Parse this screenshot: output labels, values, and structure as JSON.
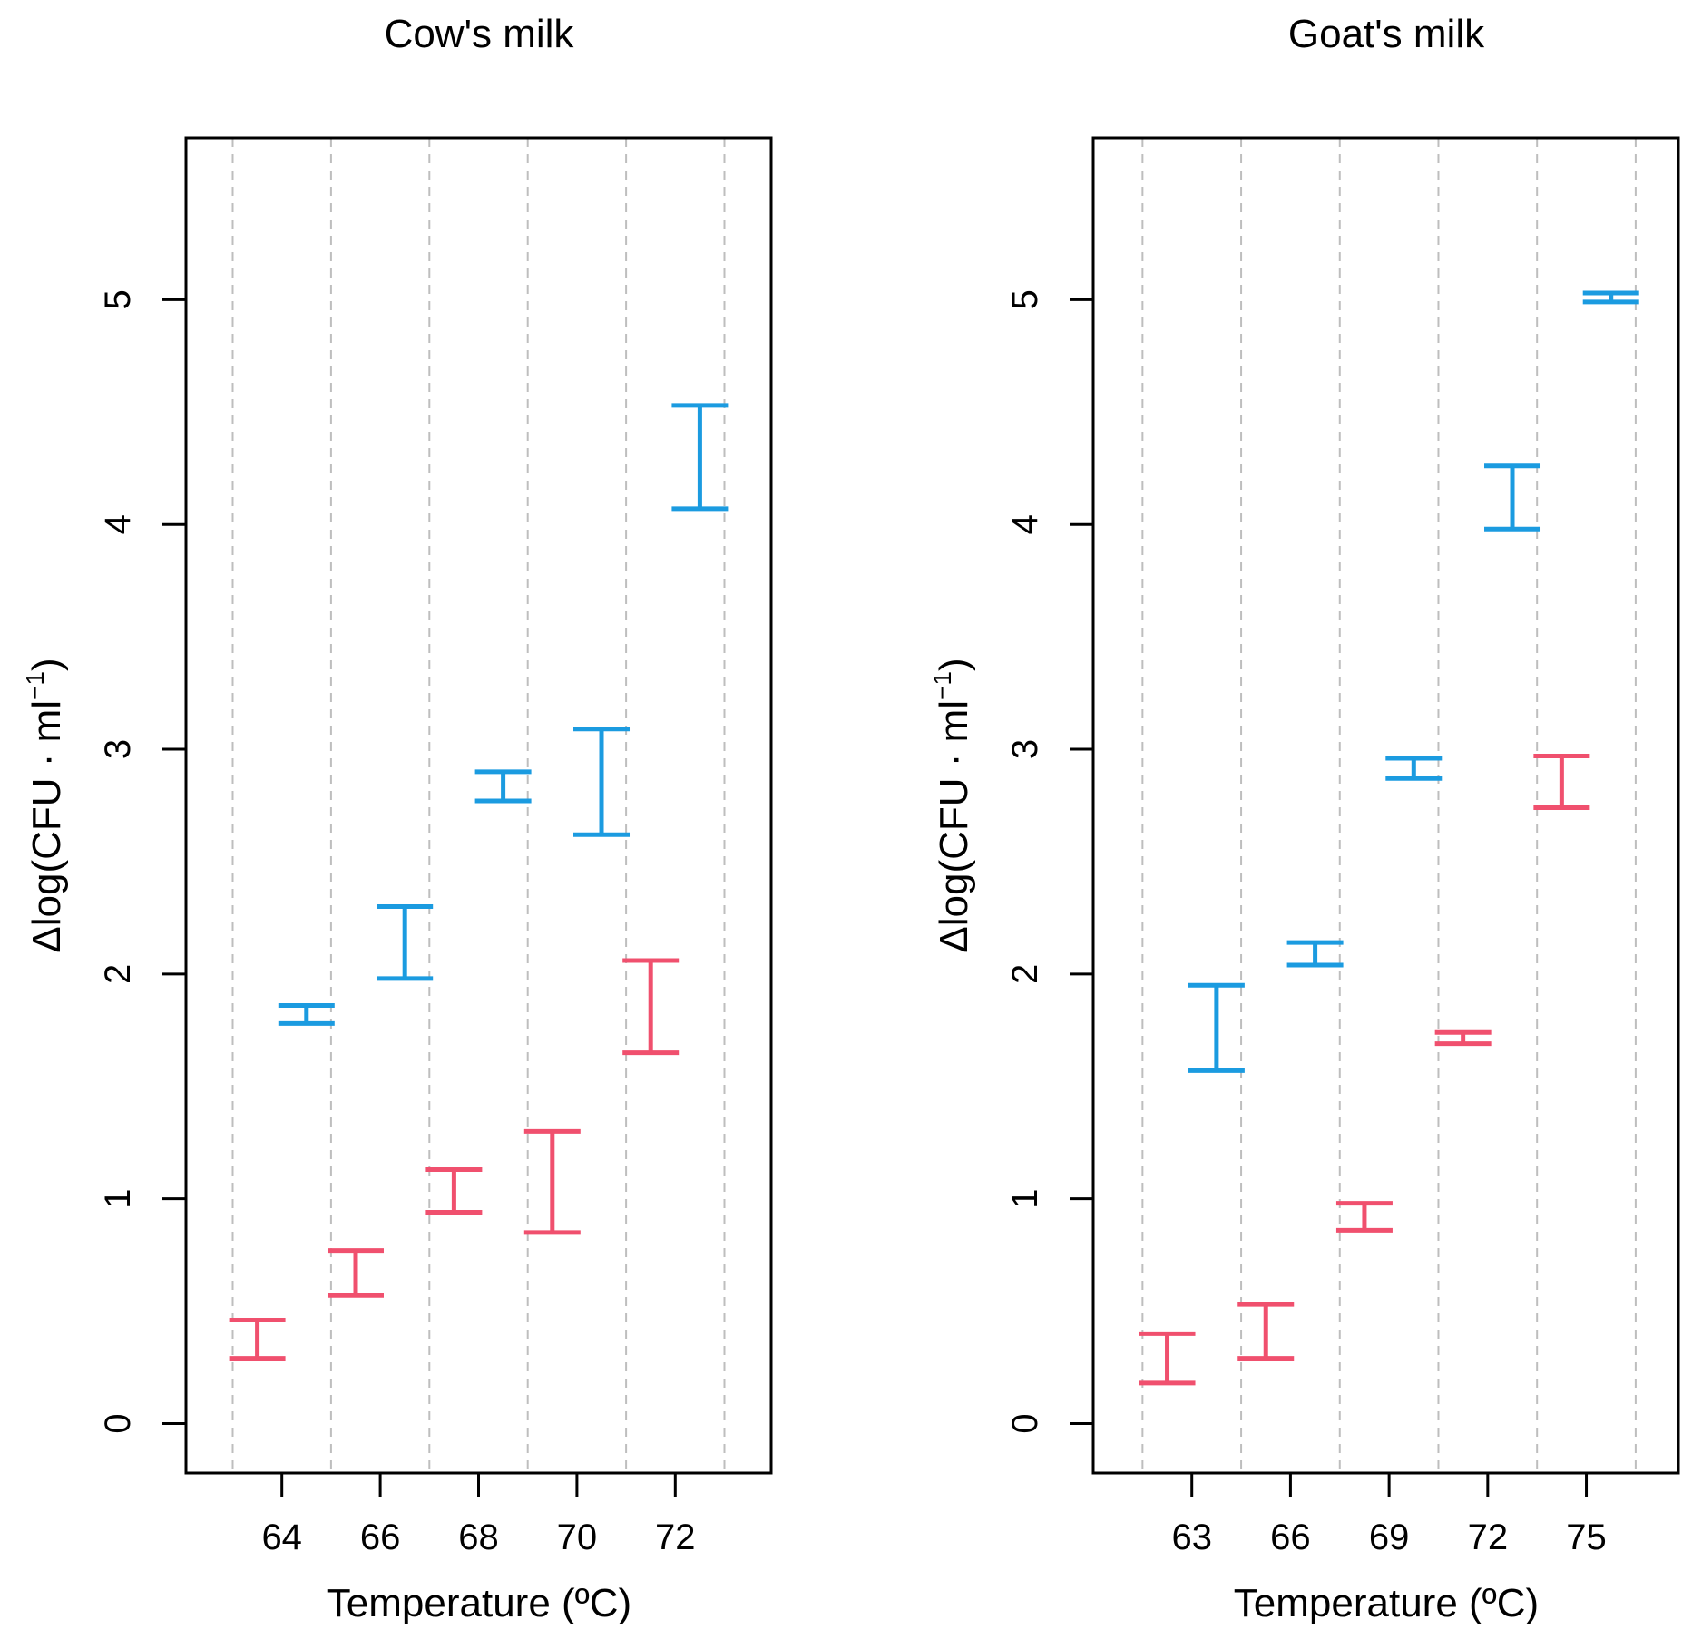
{
  "colors": {
    "low": "#F0506E",
    "high": "#1B9BE0",
    "grid": "#BEBEBE",
    "axis": "#000000"
  },
  "chart_data": [
    {
      "type": "errorbar",
      "title": "Cow's milk",
      "xlabel": "Temperature (ºC)",
      "ylabel_main": "Δlog(CFU · ml",
      "ylabel_sup": "−1",
      "ylabel_close": ")",
      "xlim": [
        62.05,
        73.95
      ],
      "ylim": [
        -0.22,
        5.72
      ],
      "x_ticks": [
        64,
        66,
        68,
        70,
        72
      ],
      "x_tick_labels": [
        "64",
        "66",
        "68",
        "70",
        "72"
      ],
      "y_ticks": [
        0,
        1,
        2,
        3,
        4,
        5
      ],
      "y_tick_labels": [
        "0",
        "1",
        "2",
        "3",
        "4",
        "5"
      ],
      "grid_x": [
        63,
        65,
        67,
        69,
        71,
        73
      ],
      "grid": "vertical dashed",
      "series": [
        {
          "color_key": "low",
          "points": [
            {
              "x": 63.5,
              "low": 0.29,
              "high": 0.46
            },
            {
              "x": 65.5,
              "low": 0.57,
              "high": 0.77
            },
            {
              "x": 67.5,
              "low": 0.94,
              "high": 1.13
            },
            {
              "x": 69.5,
              "low": 0.85,
              "high": 1.3
            },
            {
              "x": 71.5,
              "low": 1.65,
              "high": 2.06
            }
          ]
        },
        {
          "color_key": "high",
          "points": [
            {
              "x": 64.5,
              "low": 1.78,
              "high": 1.86
            },
            {
              "x": 66.5,
              "low": 1.98,
              "high": 2.3
            },
            {
              "x": 68.5,
              "low": 2.77,
              "high": 2.9
            },
            {
              "x": 70.5,
              "low": 2.62,
              "high": 3.09
            },
            {
              "x": 72.5,
              "low": 4.07,
              "high": 4.53
            }
          ]
        }
      ]
    },
    {
      "type": "errorbar",
      "title": "Goat's milk",
      "xlabel": "Temperature (ºC)",
      "ylabel_main": "Δlog(CFU · ml",
      "ylabel_sup": "−1",
      "ylabel_close": ")",
      "xlim": [
        60.0,
        77.8
      ],
      "ylim": [
        -0.22,
        5.72
      ],
      "x_ticks": [
        63,
        66,
        69,
        72,
        75
      ],
      "x_tick_labels": [
        "63",
        "66",
        "69",
        "72",
        "75"
      ],
      "y_ticks": [
        0,
        1,
        2,
        3,
        4,
        5
      ],
      "y_tick_labels": [
        "0",
        "1",
        "2",
        "3",
        "4",
        "5"
      ],
      "grid_x": [
        61.5,
        64.5,
        67.5,
        70.5,
        73.5,
        76.5
      ],
      "grid": "vertical dashed",
      "series": [
        {
          "color_key": "low",
          "points": [
            {
              "x": 62.25,
              "low": 0.18,
              "high": 0.4
            },
            {
              "x": 65.25,
              "low": 0.29,
              "high": 0.53
            },
            {
              "x": 68.25,
              "low": 0.86,
              "high": 0.98
            },
            {
              "x": 71.25,
              "low": 1.69,
              "high": 1.74
            },
            {
              "x": 74.25,
              "low": 2.74,
              "high": 2.97
            }
          ]
        },
        {
          "color_key": "high",
          "points": [
            {
              "x": 63.75,
              "low": 1.57,
              "high": 1.95
            },
            {
              "x": 66.75,
              "low": 2.04,
              "high": 2.14
            },
            {
              "x": 69.75,
              "low": 2.87,
              "high": 2.96
            },
            {
              "x": 72.75,
              "low": 3.98,
              "high": 4.26
            },
            {
              "x": 75.75,
              "low": 4.99,
              "high": 5.03
            }
          ]
        }
      ]
    }
  ]
}
